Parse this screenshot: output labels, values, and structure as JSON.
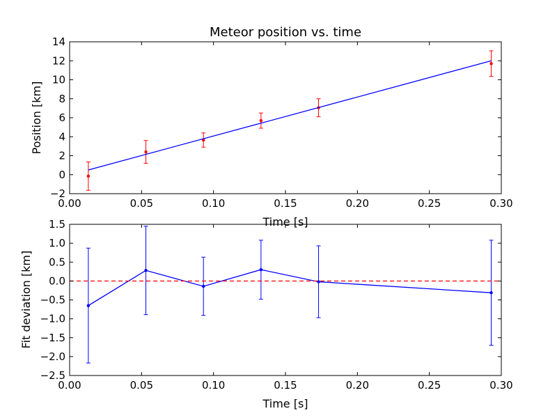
{
  "chart_data": [
    {
      "type": "scatter",
      "title": "Meteor position vs. time",
      "xlabel": "Time [s]",
      "ylabel": "Position [km]",
      "xlim": [
        0.0,
        0.3
      ],
      "ylim": [
        -2,
        14
      ],
      "xticks": [
        "0.00",
        "0.05",
        "0.10",
        "0.15",
        "0.20",
        "0.25",
        "0.30"
      ],
      "yticks": [
        "−2",
        "0",
        "2",
        "4",
        "6",
        "8",
        "10",
        "12",
        "14"
      ],
      "grid": false,
      "series": [
        {
          "kind": "errorbar",
          "color": "#ff0000",
          "x": [
            0.013,
            0.053,
            0.093,
            0.133,
            0.173,
            0.293
          ],
          "y": [
            -0.15,
            2.4,
            3.65,
            5.7,
            7.05,
            11.7
          ],
          "yerr": [
            1.5,
            1.2,
            0.75,
            0.8,
            0.95,
            1.35
          ]
        },
        {
          "kind": "line",
          "color": "#0000ff",
          "x": [
            0.013,
            0.293
          ],
          "y": [
            0.5,
            12.0
          ]
        }
      ]
    },
    {
      "type": "line",
      "title": "",
      "xlabel": "Time [s]",
      "ylabel": "Fit deviation [km]",
      "xlim": [
        0.0,
        0.3
      ],
      "ylim": [
        -2.5,
        1.5
      ],
      "xticks": [
        "0.00",
        "0.05",
        "0.10",
        "0.15",
        "0.20",
        "0.25",
        "0.30"
      ],
      "yticks": [
        "−2.5",
        "−2.0",
        "−1.5",
        "−1.0",
        "−0.5",
        "0.0",
        "0.5",
        "1.0",
        "1.5"
      ],
      "grid": false,
      "series": [
        {
          "kind": "errorbar-line",
          "color": "#0000ff",
          "x": [
            0.013,
            0.053,
            0.093,
            0.133,
            0.173,
            0.293
          ],
          "y": [
            -0.65,
            0.28,
            -0.14,
            0.3,
            -0.02,
            -0.31
          ],
          "yerr": [
            1.52,
            1.17,
            0.77,
            0.78,
            0.95,
            1.39
          ]
        },
        {
          "kind": "reference-line",
          "color": "#ff0000",
          "style": "dashed",
          "y": 0.0
        }
      ]
    }
  ]
}
